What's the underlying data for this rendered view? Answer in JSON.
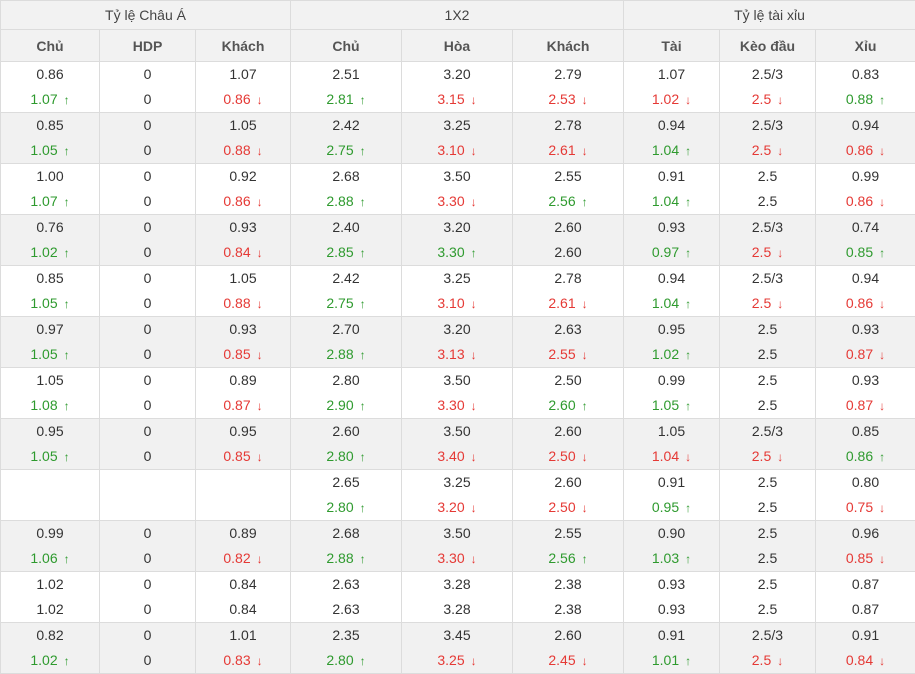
{
  "header": {
    "groups": [
      "Tỷ lệ Châu Á",
      "1X2",
      "Tỷ lệ tài xỉu"
    ],
    "columns": [
      "Chủ",
      "HDP",
      "Khách",
      "Chủ",
      "Hòa",
      "Khách",
      "Tài",
      "Kèo đầu",
      "Xỉu"
    ]
  },
  "arrows": {
    "up": "↑",
    "down": "↓"
  },
  "colors": {
    "up": "#2e9a2e",
    "down": "#e53935",
    "neutral": "#333333",
    "border": "#dcdcdc",
    "header_bg": "#f2f2f2",
    "row_alt_bg": "#f1f1f1"
  },
  "rows": [
    [
      [
        "0.86",
        "1.07",
        "up"
      ],
      [
        "0",
        "0",
        ""
      ],
      [
        "1.07",
        "0.86",
        "down"
      ],
      [
        "2.51",
        "2.81",
        "up"
      ],
      [
        "3.20",
        "3.15",
        "down"
      ],
      [
        "2.79",
        "2.53",
        "down"
      ],
      [
        "1.07",
        "1.02",
        "down"
      ],
      [
        "2.5/3",
        "2.5",
        "down"
      ],
      [
        "0.83",
        "0.88",
        "up"
      ]
    ],
    [
      [
        "0.85",
        "1.05",
        "up"
      ],
      [
        "0",
        "0",
        ""
      ],
      [
        "1.05",
        "0.88",
        "down"
      ],
      [
        "2.42",
        "2.75",
        "up"
      ],
      [
        "3.25",
        "3.10",
        "down"
      ],
      [
        "2.78",
        "2.61",
        "down"
      ],
      [
        "0.94",
        "1.04",
        "up"
      ],
      [
        "2.5/3",
        "2.5",
        "down"
      ],
      [
        "0.94",
        "0.86",
        "down"
      ]
    ],
    [
      [
        "1.00",
        "1.07",
        "up"
      ],
      [
        "0",
        "0",
        ""
      ],
      [
        "0.92",
        "0.86",
        "down"
      ],
      [
        "2.68",
        "2.88",
        "up"
      ],
      [
        "3.50",
        "3.30",
        "down"
      ],
      [
        "2.55",
        "2.56",
        "up"
      ],
      [
        "0.91",
        "1.04",
        "up"
      ],
      [
        "2.5",
        "2.5",
        ""
      ],
      [
        "0.99",
        "0.86",
        "down"
      ]
    ],
    [
      [
        "0.76",
        "1.02",
        "up"
      ],
      [
        "0",
        "0",
        ""
      ],
      [
        "0.93",
        "0.84",
        "down"
      ],
      [
        "2.40",
        "2.85",
        "up"
      ],
      [
        "3.20",
        "3.30",
        "up"
      ],
      [
        "2.60",
        "2.60",
        ""
      ],
      [
        "0.93",
        "0.97",
        "up"
      ],
      [
        "2.5/3",
        "2.5",
        "down"
      ],
      [
        "0.74",
        "0.85",
        "up"
      ]
    ],
    [
      [
        "0.85",
        "1.05",
        "up"
      ],
      [
        "0",
        "0",
        ""
      ],
      [
        "1.05",
        "0.88",
        "down"
      ],
      [
        "2.42",
        "2.75",
        "up"
      ],
      [
        "3.25",
        "3.10",
        "down"
      ],
      [
        "2.78",
        "2.61",
        "down"
      ],
      [
        "0.94",
        "1.04",
        "up"
      ],
      [
        "2.5/3",
        "2.5",
        "down"
      ],
      [
        "0.94",
        "0.86",
        "down"
      ]
    ],
    [
      [
        "0.97",
        "1.05",
        "up"
      ],
      [
        "0",
        "0",
        ""
      ],
      [
        "0.93",
        "0.85",
        "down"
      ],
      [
        "2.70",
        "2.88",
        "up"
      ],
      [
        "3.20",
        "3.13",
        "down"
      ],
      [
        "2.63",
        "2.55",
        "down"
      ],
      [
        "0.95",
        "1.02",
        "up"
      ],
      [
        "2.5",
        "2.5",
        ""
      ],
      [
        "0.93",
        "0.87",
        "down"
      ]
    ],
    [
      [
        "1.05",
        "1.08",
        "up"
      ],
      [
        "0",
        "0",
        ""
      ],
      [
        "0.89",
        "0.87",
        "down"
      ],
      [
        "2.80",
        "2.90",
        "up"
      ],
      [
        "3.50",
        "3.30",
        "down"
      ],
      [
        "2.50",
        "2.60",
        "up"
      ],
      [
        "0.99",
        "1.05",
        "up"
      ],
      [
        "2.5",
        "2.5",
        ""
      ],
      [
        "0.93",
        "0.87",
        "down"
      ]
    ],
    [
      [
        "0.95",
        "1.05",
        "up"
      ],
      [
        "0",
        "0",
        ""
      ],
      [
        "0.95",
        "0.85",
        "down"
      ],
      [
        "2.60",
        "2.80",
        "up"
      ],
      [
        "3.50",
        "3.40",
        "down"
      ],
      [
        "2.60",
        "2.50",
        "down"
      ],
      [
        "1.05",
        "1.04",
        "down"
      ],
      [
        "2.5/3",
        "2.5",
        "down"
      ],
      [
        "0.85",
        "0.86",
        "up"
      ]
    ],
    [
      [
        "",
        "",
        ""
      ],
      [
        "",
        "",
        ""
      ],
      [
        "",
        "",
        ""
      ],
      [
        "2.65",
        "2.80",
        "up"
      ],
      [
        "3.25",
        "3.20",
        "down"
      ],
      [
        "2.60",
        "2.50",
        "down"
      ],
      [
        "0.91",
        "0.95",
        "up"
      ],
      [
        "2.5",
        "2.5",
        ""
      ],
      [
        "0.80",
        "0.75",
        "down"
      ]
    ],
    [
      [
        "0.99",
        "1.06",
        "up"
      ],
      [
        "0",
        "0",
        ""
      ],
      [
        "0.89",
        "0.82",
        "down"
      ],
      [
        "2.68",
        "2.88",
        "up"
      ],
      [
        "3.50",
        "3.30",
        "down"
      ],
      [
        "2.55",
        "2.56",
        "up"
      ],
      [
        "0.90",
        "1.03",
        "up"
      ],
      [
        "2.5",
        "2.5",
        ""
      ],
      [
        "0.96",
        "0.85",
        "down"
      ]
    ],
    [
      [
        "1.02",
        "1.02",
        ""
      ],
      [
        "0",
        "0",
        ""
      ],
      [
        "0.84",
        "0.84",
        ""
      ],
      [
        "2.63",
        "2.63",
        ""
      ],
      [
        "3.28",
        "3.28",
        ""
      ],
      [
        "2.38",
        "2.38",
        ""
      ],
      [
        "0.93",
        "0.93",
        ""
      ],
      [
        "2.5",
        "2.5",
        ""
      ],
      [
        "0.87",
        "0.87",
        ""
      ]
    ],
    [
      [
        "0.82",
        "1.02",
        "up"
      ],
      [
        "0",
        "0",
        ""
      ],
      [
        "1.01",
        "0.83",
        "down"
      ],
      [
        "2.35",
        "2.80",
        "up"
      ],
      [
        "3.45",
        "3.25",
        "down"
      ],
      [
        "2.60",
        "2.45",
        "down"
      ],
      [
        "0.91",
        "1.01",
        "up"
      ],
      [
        "2.5/3",
        "2.5",
        "down"
      ],
      [
        "0.91",
        "0.84",
        "down"
      ]
    ]
  ]
}
